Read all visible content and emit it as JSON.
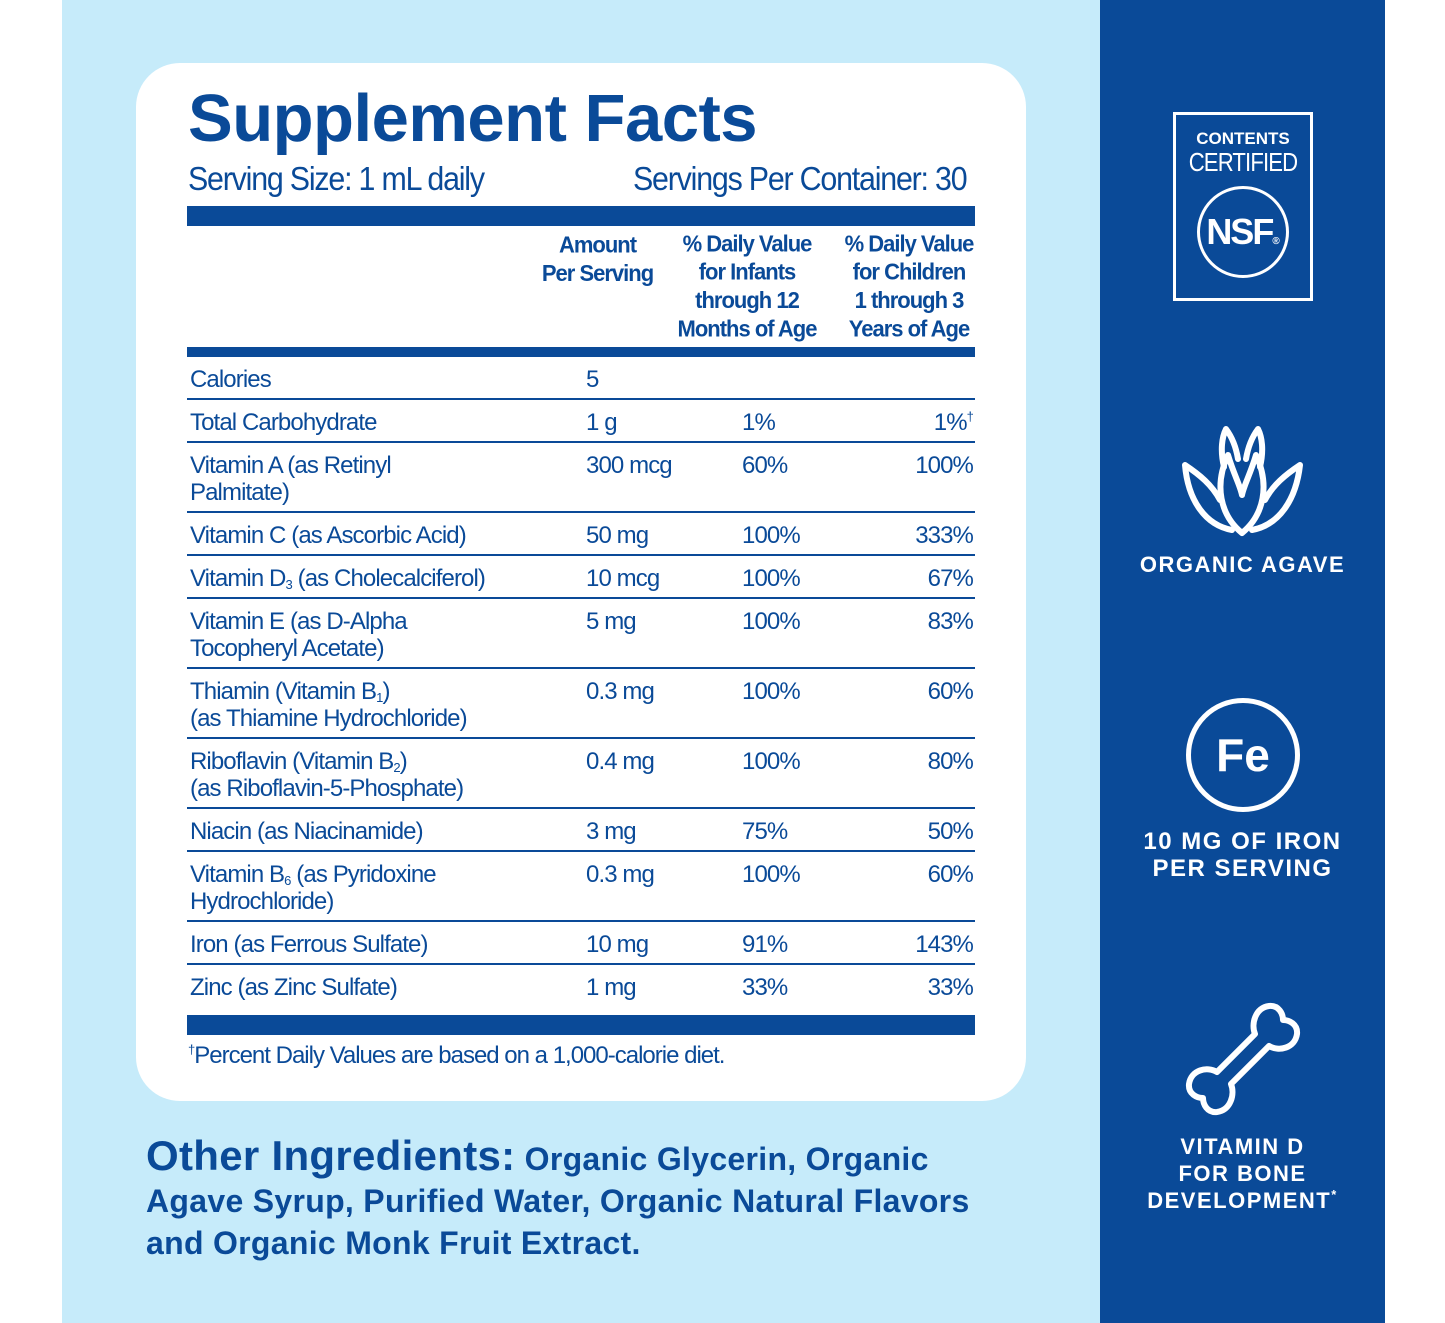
{
  "title": "Supplement Facts",
  "serving_size": "Serving Size: 1 mL daily",
  "servings_per_container": "Servings Per Container: 30",
  "headers": {
    "amount": [
      "Amount",
      "Per Serving"
    ],
    "infants": [
      "% Daily Value",
      "for Infants",
      "through 12",
      "Months of Age"
    ],
    "children": [
      "% Daily Value",
      "for Children",
      "1 through 3",
      "Years of Age"
    ]
  },
  "rows": [
    {
      "name": [
        [
          {
            "t": "Calories"
          }
        ]
      ],
      "amount": "5",
      "infants": "",
      "children": ""
    },
    {
      "name": [
        [
          {
            "t": "Total Carbohydrate"
          }
        ]
      ],
      "amount": "1 g",
      "infants": "1%",
      "children": "1%",
      "children_mark": "†"
    },
    {
      "name": [
        [
          {
            "t": "Vitamin A (as Retinyl"
          }
        ],
        [
          {
            "t": "Palmitate)"
          }
        ]
      ],
      "amount": "300 mcg",
      "infants": "60%",
      "children": "100%"
    },
    {
      "name": [
        [
          {
            "t": "Vitamin C (as Ascorbic Acid)"
          }
        ]
      ],
      "amount": "50 mg",
      "infants": "100%",
      "children": "333%"
    },
    {
      "name": [
        [
          {
            "t": "Vitamin D"
          },
          {
            "sub": "3"
          },
          {
            "t": " (as Cholecalciferol)"
          }
        ]
      ],
      "amount": "10 mcg",
      "infants": "100%",
      "children": "67%"
    },
    {
      "name": [
        [
          {
            "t": "Vitamin E (as D-Alpha"
          }
        ],
        [
          {
            "t": "Tocopheryl Acetate)"
          }
        ]
      ],
      "amount": "5 mg",
      "infants": "100%",
      "children": "83%"
    },
    {
      "name": [
        [
          {
            "t": "Thiamin (Vitamin B"
          },
          {
            "sub": "1"
          },
          {
            "t": ")"
          }
        ],
        [
          {
            "t": "(as Thiamine Hydrochloride)"
          }
        ]
      ],
      "amount": "0.3 mg",
      "infants": "100%",
      "children": "60%"
    },
    {
      "name": [
        [
          {
            "t": "Riboflavin (Vitamin B"
          },
          {
            "sub": "2"
          },
          {
            "t": ")"
          }
        ],
        [
          {
            "t": "(as Riboflavin-5-Phosphate)"
          }
        ]
      ],
      "amount": "0.4 mg",
      "infants": "100%",
      "children": "80%"
    },
    {
      "name": [
        [
          {
            "t": "Niacin (as Niacinamide)"
          }
        ]
      ],
      "amount": "3 mg",
      "infants": "75%",
      "children": "50%"
    },
    {
      "name": [
        [
          {
            "t": "Vitamin B"
          },
          {
            "sub": "6"
          },
          {
            "t": " (as Pyridoxine"
          }
        ],
        [
          {
            "t": "Hydrochloride)"
          }
        ]
      ],
      "amount": "0.3 mg",
      "infants": "100%",
      "children": "60%"
    },
    {
      "name": [
        [
          {
            "t": "Iron (as Ferrous Sulfate)"
          }
        ]
      ],
      "amount": "10 mg",
      "infants": "91%",
      "children": "143%"
    },
    {
      "name": [
        [
          {
            "t": "Zinc (as Zinc Sulfate)"
          }
        ]
      ],
      "amount": "1 mg",
      "infants": "33%",
      "children": "33%"
    }
  ],
  "footnote_mark": "†",
  "footnote": "Percent Daily Values are based on a 1,000-calorie diet.",
  "other_ingredients": {
    "label": "Other Ingredients:",
    "text": " Organic Glycerin, Organic Agave Syrup, Purified Water, Organic Natural Flavors and Organic Monk Fruit Extract."
  },
  "sidebar": {
    "nsf": {
      "line1": "CONTENTS",
      "line2": "CERTIFIED",
      "logo": "NSF",
      "reg": "®"
    },
    "agave": {
      "icon": "agave-icon",
      "label": "ORGANIC AGAVE"
    },
    "iron": {
      "symbol": "Fe",
      "line1": "10 MG OF IRON",
      "line2": "PER SERVING"
    },
    "bone": {
      "icon": "bone-icon",
      "line1": "VITAMIN D",
      "line2": "FOR BONE",
      "line3": "DEVELOPMENT",
      "mark": "*"
    }
  },
  "colors": {
    "brand_blue": "#0a4a98",
    "light_blue": "#c6ebfa"
  }
}
